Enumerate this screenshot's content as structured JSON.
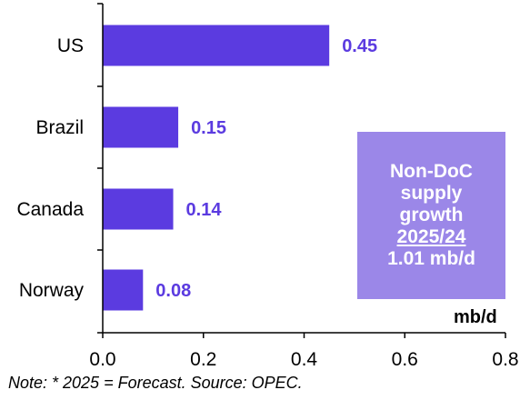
{
  "colors": {
    "bar": "#5b3be0",
    "data_label": "#5b3be0",
    "annotation_bg": "#9b87e8",
    "axis": "#000000"
  },
  "chart_data": {
    "type": "bar",
    "orientation": "horizontal",
    "categories": [
      "US",
      "Brazil",
      "Canada",
      "Norway"
    ],
    "values": [
      0.45,
      0.15,
      0.14,
      0.08
    ],
    "data_labels": [
      "0.45",
      "0.15",
      "0.14",
      "0.08"
    ],
    "xlim": [
      0.0,
      0.8
    ],
    "x_ticks": [
      0.0,
      0.2,
      0.4,
      0.6,
      0.8
    ],
    "x_tick_labels": [
      "0.0",
      "0.2",
      "0.4",
      "0.6",
      "0.8"
    ],
    "unit_label": "mb/d",
    "grid": false,
    "legend": "none"
  },
  "annotation": {
    "line1": "Non-DoC",
    "line2": "supply",
    "line3": "growth",
    "line4": "2025/24",
    "line5": "1.01 mb/d"
  },
  "note": "Note: * 2025 = Forecast. Source: OPEC."
}
